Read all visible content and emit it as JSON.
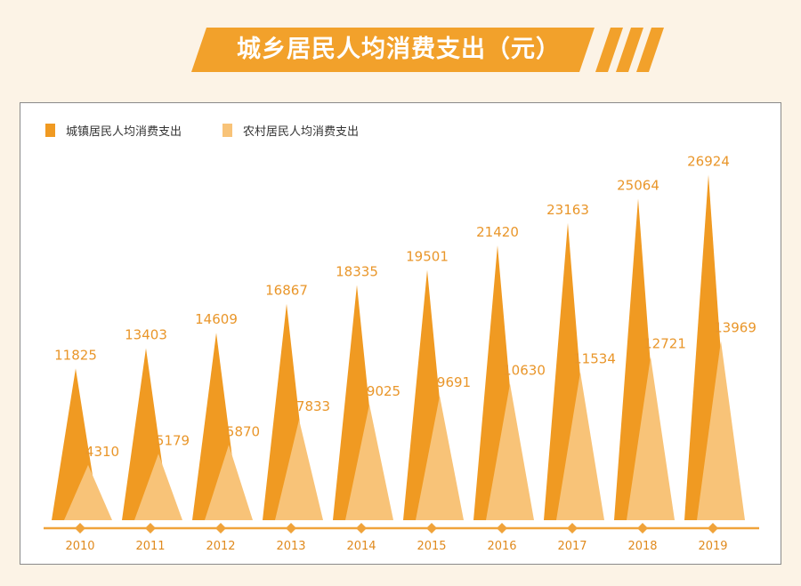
{
  "header": {
    "title": "城乡居民人均消费支出（元）"
  },
  "colors": {
    "urban": "#f09a22",
    "rural": "#f8c378",
    "axis": "#f0a33a",
    "banner": "#f2a12b",
    "value_text": "#e9962a"
  },
  "chart_data": {
    "type": "bar",
    "title": "城乡居民人均消费支出（元）",
    "categories": [
      "2010",
      "2011",
      "2012",
      "2013",
      "2014",
      "2015",
      "2016",
      "2017",
      "2018",
      "2019"
    ],
    "series": [
      {
        "name": "城镇居民人均消费支出",
        "values": [
          11825,
          13403,
          14609,
          16867,
          18335,
          19501,
          21420,
          23163,
          25064,
          26924
        ]
      },
      {
        "name": "农村居民人均消费支出",
        "values": [
          4310,
          5179,
          5870,
          7833,
          9025,
          9691,
          10630,
          11534,
          12721,
          13969
        ]
      }
    ],
    "ylim": [
      0,
      28000
    ],
    "grid": false,
    "legend": "top-left"
  }
}
